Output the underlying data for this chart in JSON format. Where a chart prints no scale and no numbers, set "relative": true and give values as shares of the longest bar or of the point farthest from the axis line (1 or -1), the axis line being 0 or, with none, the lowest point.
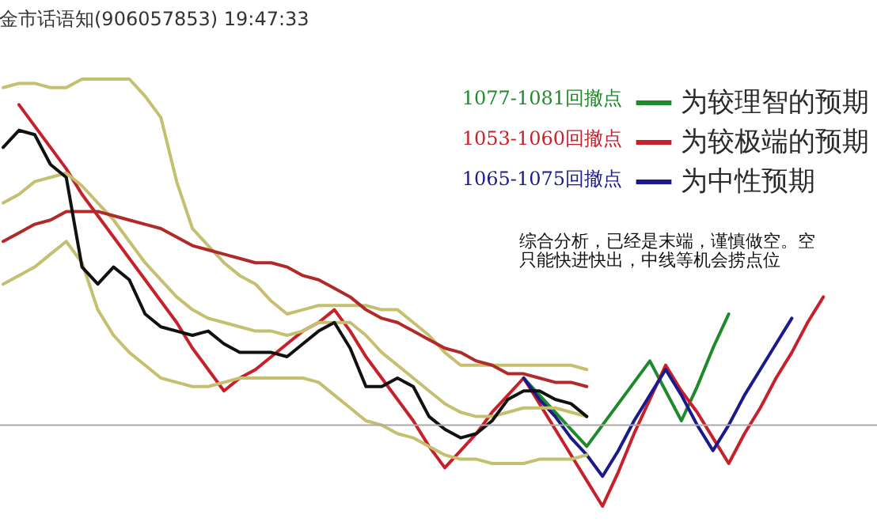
{
  "chart_data": {
    "type": "line",
    "title": "金市话语知(906057853)  19:47:33",
    "relative": true,
    "legend": "top right",
    "categories": [
      null,
      null,
      null,
      null,
      null,
      null,
      null,
      null,
      null,
      null,
      null,
      null,
      null,
      null,
      null,
      null,
      null,
      null,
      null,
      null,
      null,
      null,
      null,
      null,
      null,
      null,
      null,
      null,
      null,
      null,
      null,
      null,
      null,
      null,
      null,
      null,
      null,
      null,
      null,
      null,
      null,
      null,
      null,
      null,
      null,
      null,
      null,
      null,
      null,
      null,
      null,
      null,
      null,
      null,
      null,
      null
    ],
    "series": [
      {
        "name": "为较理智的预期",
        "color": "#1e8a2a",
        "values": [
          null,
          null,
          null,
          null,
          null,
          null,
          null,
          null,
          null,
          null,
          null,
          null,
          null,
          null,
          null,
          null,
          null,
          null,
          null,
          null,
          null,
          null,
          null,
          null,
          null,
          null,
          null,
          null,
          null,
          null,
          null,
          null,
          null,
          0.3,
          0.26,
          0.22,
          0.18,
          0.14,
          0.19,
          0.24,
          0.29,
          0.34,
          0.27,
          0.2,
          0.28,
          0.37,
          0.45,
          null,
          null,
          null,
          null,
          null,
          null,
          null,
          null,
          null
        ]
      },
      {
        "name": "为较极端的预期",
        "color": "#c8202a",
        "values": [
          null,
          0.94,
          0.89,
          0.84,
          0.79,
          0.73,
          0.68,
          0.63,
          0.58,
          0.53,
          0.48,
          0.43,
          0.37,
          0.32,
          0.27,
          0.3,
          0.32,
          0.35,
          0.38,
          0.41,
          0.43,
          0.46,
          0.41,
          0.35,
          0.3,
          0.25,
          0.2,
          0.14,
          0.09,
          0.13,
          0.17,
          0.22,
          0.26,
          0.3,
          0.24,
          0.18,
          0.12,
          0.06,
          0,
          0.08,
          0.17,
          0.25,
          0.33,
          0.27,
          0.22,
          0.16,
          0.1,
          0.17,
          0.23,
          0.3,
          0.36,
          0.43,
          0.49,
          null,
          null,
          null
        ]
      },
      {
        "name": "为中性预期",
        "color": "#1a1a8c",
        "values": [
          null,
          null,
          null,
          null,
          null,
          null,
          null,
          null,
          null,
          null,
          null,
          null,
          null,
          null,
          null,
          null,
          null,
          null,
          null,
          null,
          null,
          null,
          null,
          null,
          null,
          null,
          null,
          null,
          null,
          null,
          null,
          null,
          null,
          0.3,
          0.25,
          0.21,
          0.16,
          0.12,
          0.07,
          0.13,
          0.2,
          0.26,
          0.32,
          0.26,
          0.19,
          0.13,
          0.19,
          0.26,
          0.32,
          0.38,
          0.44,
          null,
          null,
          null,
          null,
          null
        ]
      },
      {
        "color": "#c4c070",
        "values": [
          0.98,
          0.99,
          0.99,
          0.98,
          0.98,
          1,
          1,
          1,
          1,
          0.96,
          0.91,
          0.76,
          0.65,
          0.61,
          0.57,
          0.54,
          0.52,
          0.48,
          0.45,
          0.46,
          0.47,
          0.47,
          0.47,
          0.47,
          0.46,
          0.46,
          0.43,
          0.4,
          0.36,
          0.33,
          0.33,
          0.33,
          0.33,
          0.33,
          0.33,
          0.33,
          0.33,
          0.32,
          null,
          null,
          null,
          null,
          null,
          null,
          null,
          null,
          null,
          null,
          null,
          null,
          null,
          null,
          null,
          null,
          null,
          null
        ]
      },
      {
        "color": "#c4c070",
        "values": [
          0.71,
          0.73,
          0.76,
          0.77,
          0.78,
          0.75,
          0.71,
          0.67,
          0.62,
          0.57,
          0.53,
          0.49,
          0.46,
          0.44,
          0.43,
          0.42,
          0.41,
          0.41,
          0.4,
          0.41,
          0.43,
          0.43,
          0.43,
          0.4,
          0.36,
          0.33,
          0.3,
          0.27,
          0.24,
          0.22,
          0.21,
          0.21,
          0.22,
          0.23,
          0.23,
          0.23,
          0.22,
          0.21,
          null,
          null,
          null,
          null,
          null,
          null,
          null,
          null,
          null,
          null,
          null,
          null,
          null,
          null,
          null,
          null,
          null,
          null
        ]
      },
      {
        "color": "#c4c070",
        "values": [
          0.52,
          0.54,
          0.56,
          0.59,
          0.62,
          0.57,
          0.46,
          0.4,
          0.36,
          0.33,
          0.3,
          0.29,
          0.28,
          0.28,
          0.29,
          0.3,
          0.3,
          0.3,
          0.3,
          0.3,
          0.29,
          0.26,
          0.23,
          0.2,
          0.19,
          0.17,
          0.16,
          0.14,
          0.12,
          0.11,
          0.11,
          0.1,
          0.1,
          0.1,
          0.11,
          0.11,
          0.11,
          0.12,
          null,
          null,
          null,
          null,
          null,
          null,
          null,
          null,
          null,
          null,
          null,
          null,
          null,
          null,
          null,
          null,
          null,
          null
        ]
      },
      {
        "color": "#b02a2a",
        "values": [
          0.62,
          0.64,
          0.66,
          0.67,
          0.69,
          0.69,
          0.69,
          0.68,
          0.67,
          0.66,
          0.65,
          0.63,
          0.61,
          0.6,
          0.59,
          0.58,
          0.57,
          0.57,
          0.56,
          0.54,
          0.53,
          0.51,
          0.49,
          0.46,
          0.44,
          0.43,
          0.41,
          0.39,
          0.37,
          0.36,
          0.34,
          0.33,
          0.31,
          0.31,
          0.3,
          0.29,
          0.29,
          0.28,
          null,
          null,
          null,
          null,
          null,
          null,
          null,
          null,
          null,
          null,
          null,
          null,
          null,
          null,
          null,
          null,
          null,
          null
        ]
      },
      {
        "color": "#111111",
        "values": [
          0.84,
          0.88,
          0.87,
          0.8,
          0.77,
          0.56,
          0.52,
          0.56,
          0.53,
          0.45,
          0.42,
          0.41,
          0.4,
          0.41,
          0.38,
          0.36,
          0.36,
          0.36,
          0.35,
          0.38,
          0.41,
          0.43,
          0.37,
          0.28,
          0.28,
          0.3,
          0.28,
          0.21,
          0.18,
          0.16,
          0.17,
          0.2,
          0.25,
          0.27,
          0.27,
          0.25,
          0.24,
          0.21,
          null,
          null,
          null,
          null,
          null,
          null,
          null,
          null,
          null,
          null,
          null,
          null,
          null,
          null,
          null,
          null,
          null,
          null
        ]
      }
    ],
    "ref_lines": [
      {
        "axis": "y",
        "value": 0.19,
        "color": "#aaaaaa"
      }
    ],
    "annotations": [
      "1077-1081回撤点",
      "1053-1060回撤点",
      "1065-1075回撤点",
      "综合分析，已经是末端，谨慎做空。空",
      "只能快进快出，中线等机会捞点位"
    ]
  }
}
